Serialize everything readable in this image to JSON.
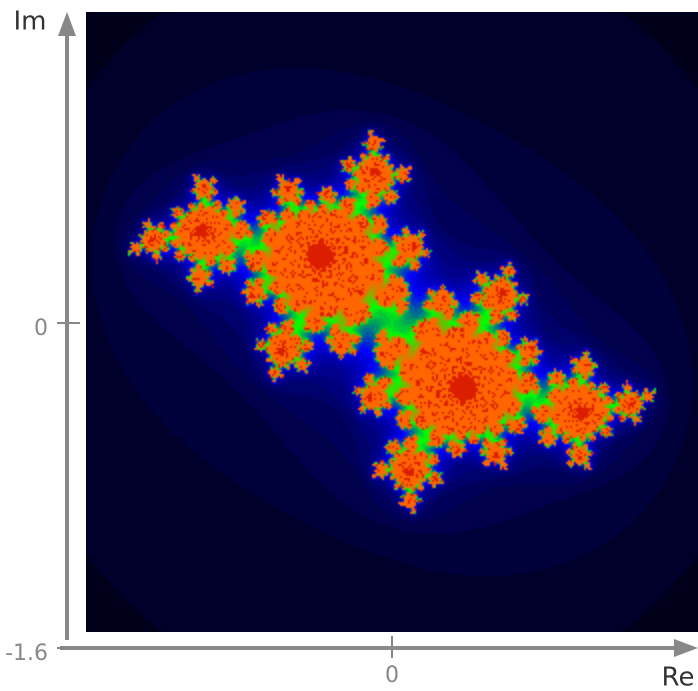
{
  "chart_data": {
    "type": "image",
    "xlabel": "Re",
    "ylabel": "Im",
    "xlim": [
      -1.6,
      1.6
    ],
    "ylim": [
      -1.6,
      1.6
    ],
    "xticks": [
      0
    ],
    "yticks": [
      -1.6,
      0
    ],
    "grid": false
  }
}
